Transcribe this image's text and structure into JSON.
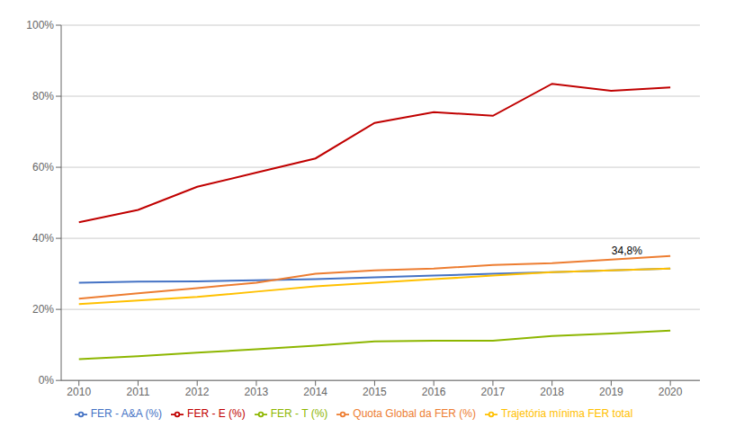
{
  "chart_data": {
    "type": "line",
    "x": [
      2010,
      2011,
      2012,
      2013,
      2014,
      2015,
      2016,
      2017,
      2018,
      2019,
      2020
    ],
    "xlim": [
      2009.7,
      2020.5
    ],
    "xticks": [
      2010,
      2011,
      2012,
      2013,
      2014,
      2015,
      2016,
      2017,
      2018,
      2019,
      2020
    ],
    "ylim": [
      0,
      100
    ],
    "yticks": [
      {
        "value": 0,
        "label": "0%"
      },
      {
        "value": 20,
        "label": "20%"
      },
      {
        "value": 40,
        "label": "40%"
      },
      {
        "value": 60,
        "label": "60%"
      },
      {
        "value": 80,
        "label": "80%"
      },
      {
        "value": 100,
        "label": "100%"
      }
    ],
    "grid": "y",
    "legend": "bottom",
    "series": [
      {
        "name": "FER - A&A (%)",
        "color": "#4472C4",
        "values": [
          27.5,
          27.8,
          27.9,
          28.2,
          28.5,
          29.0,
          29.5,
          30.0,
          30.5,
          31.0,
          31.5
        ]
      },
      {
        "name": "FER - E (%)",
        "color": "#C00000",
        "values": [
          44.5,
          48.0,
          54.5,
          58.5,
          62.5,
          72.5,
          75.5,
          74.5,
          83.5,
          81.5,
          82.5
        ]
      },
      {
        "name": "FER - T (%)",
        "color": "#8DB600",
        "values": [
          6.0,
          6.8,
          7.8,
          8.8,
          9.8,
          11.0,
          11.2,
          11.2,
          12.5,
          13.2,
          14.0
        ]
      },
      {
        "name": "Quota Global da FER (%)",
        "color": "#ED7D31",
        "values": [
          23.0,
          24.5,
          26.0,
          27.5,
          30.0,
          31.0,
          31.5,
          32.5,
          33.0,
          34.0,
          35.0
        ]
      },
      {
        "name": "Trajetória mínima FER total",
        "color": "#FFC000",
        "values": [
          21.5,
          22.5,
          23.5,
          25.0,
          26.5,
          27.5,
          28.5,
          29.5,
          30.5,
          31.0,
          31.5
        ]
      }
    ],
    "annotations": [
      {
        "text": "34,8%",
        "x": 2019.6,
        "y": 36.5
      }
    ]
  }
}
